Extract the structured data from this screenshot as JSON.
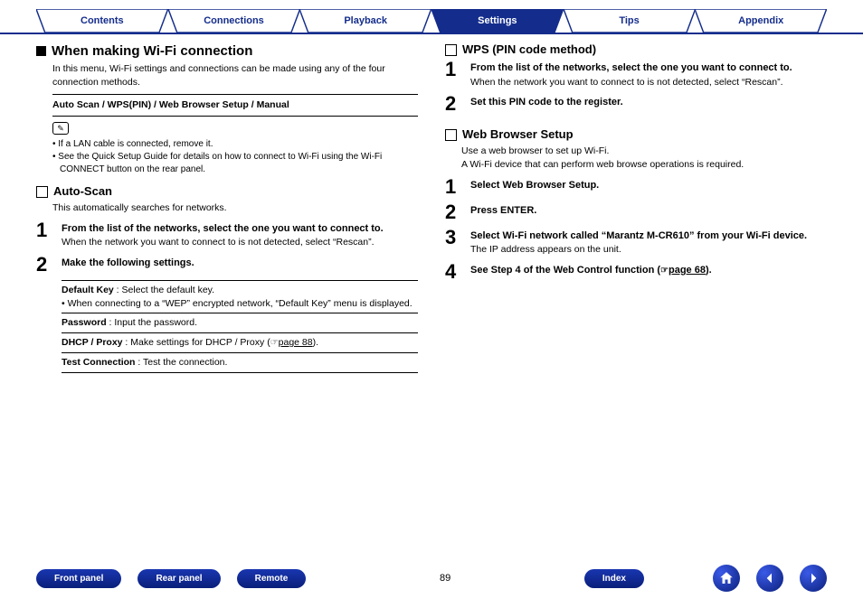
{
  "colors": {
    "brand": "#142d8c",
    "tab_fill": "#ffffff",
    "tab_active_fill": "#142d8c",
    "tab_text": "#142d8c",
    "tab_active_text": "#ffffff"
  },
  "tabs": [
    {
      "label": "Contents",
      "active": false
    },
    {
      "label": "Connections",
      "active": false
    },
    {
      "label": "Playback",
      "active": false
    },
    {
      "label": "Settings",
      "active": true
    },
    {
      "label": "Tips",
      "active": false
    },
    {
      "label": "Appendix",
      "active": false
    }
  ],
  "left": {
    "title": "When making Wi-Fi connection",
    "intro": "In this menu, Wi-Fi settings and connections can be made using any of the four connection methods.",
    "methods": "Auto Scan / WPS(PIN) / Web Browser Setup / Manual",
    "note_icon": "✎",
    "notes": [
      "If a LAN cable is connected, remove it.",
      "See the Quick Setup Guide for details on how to connect to Wi-Fi using the Wi-Fi CONNECT button on the rear panel."
    ],
    "autoscan": {
      "heading": "Auto-Scan",
      "desc": "This automatically searches for networks.",
      "step1_title": "From the list of the networks, select the one you want to connect to.",
      "step1_text": "When the network you want to connect to is not detected, select “Rescan”.",
      "step2_title": "Make the following settings.",
      "settings": [
        {
          "key": "Default Key",
          "text": " : Select the default key.",
          "sub": "When connecting to a “WEP” encrypted network, “Default Key” menu is displayed."
        },
        {
          "key": "Password",
          "text": " : Input the password."
        },
        {
          "key": "DHCP / Proxy",
          "text": " : Make settings for DHCP / Proxy (",
          "link": "page 88",
          "tail": ")."
        },
        {
          "key": "Test Connection",
          "text": " : Test the connection."
        }
      ]
    }
  },
  "right": {
    "wps": {
      "heading": "WPS (PIN code method)",
      "step1_title": "From the list of the networks, select the one you want to connect to.",
      "step1_text": "When the network you want to connect to is not detected, select “Rescan”.",
      "step2_title": "Set this PIN code to the register."
    },
    "web": {
      "heading": "Web Browser Setup",
      "desc1": "Use a web browser to set up Wi-Fi.",
      "desc2": "A Wi-Fi device that can perform web browse operations is required.",
      "step1": "Select Web Browser Setup.",
      "step2": "Press ENTER.",
      "step3_title": "Select Wi-Fi network called “Marantz M-CR610” from your Wi-Fi device.",
      "step3_text": "The IP address appears on the unit.",
      "step4_a": "See Step 4 of the Web Control function (",
      "step4_link": "page 68",
      "step4_b": ")."
    }
  },
  "footer": {
    "buttons": [
      "Front panel",
      "Rear panel",
      "Remote"
    ],
    "page": "89",
    "index": "Index"
  }
}
